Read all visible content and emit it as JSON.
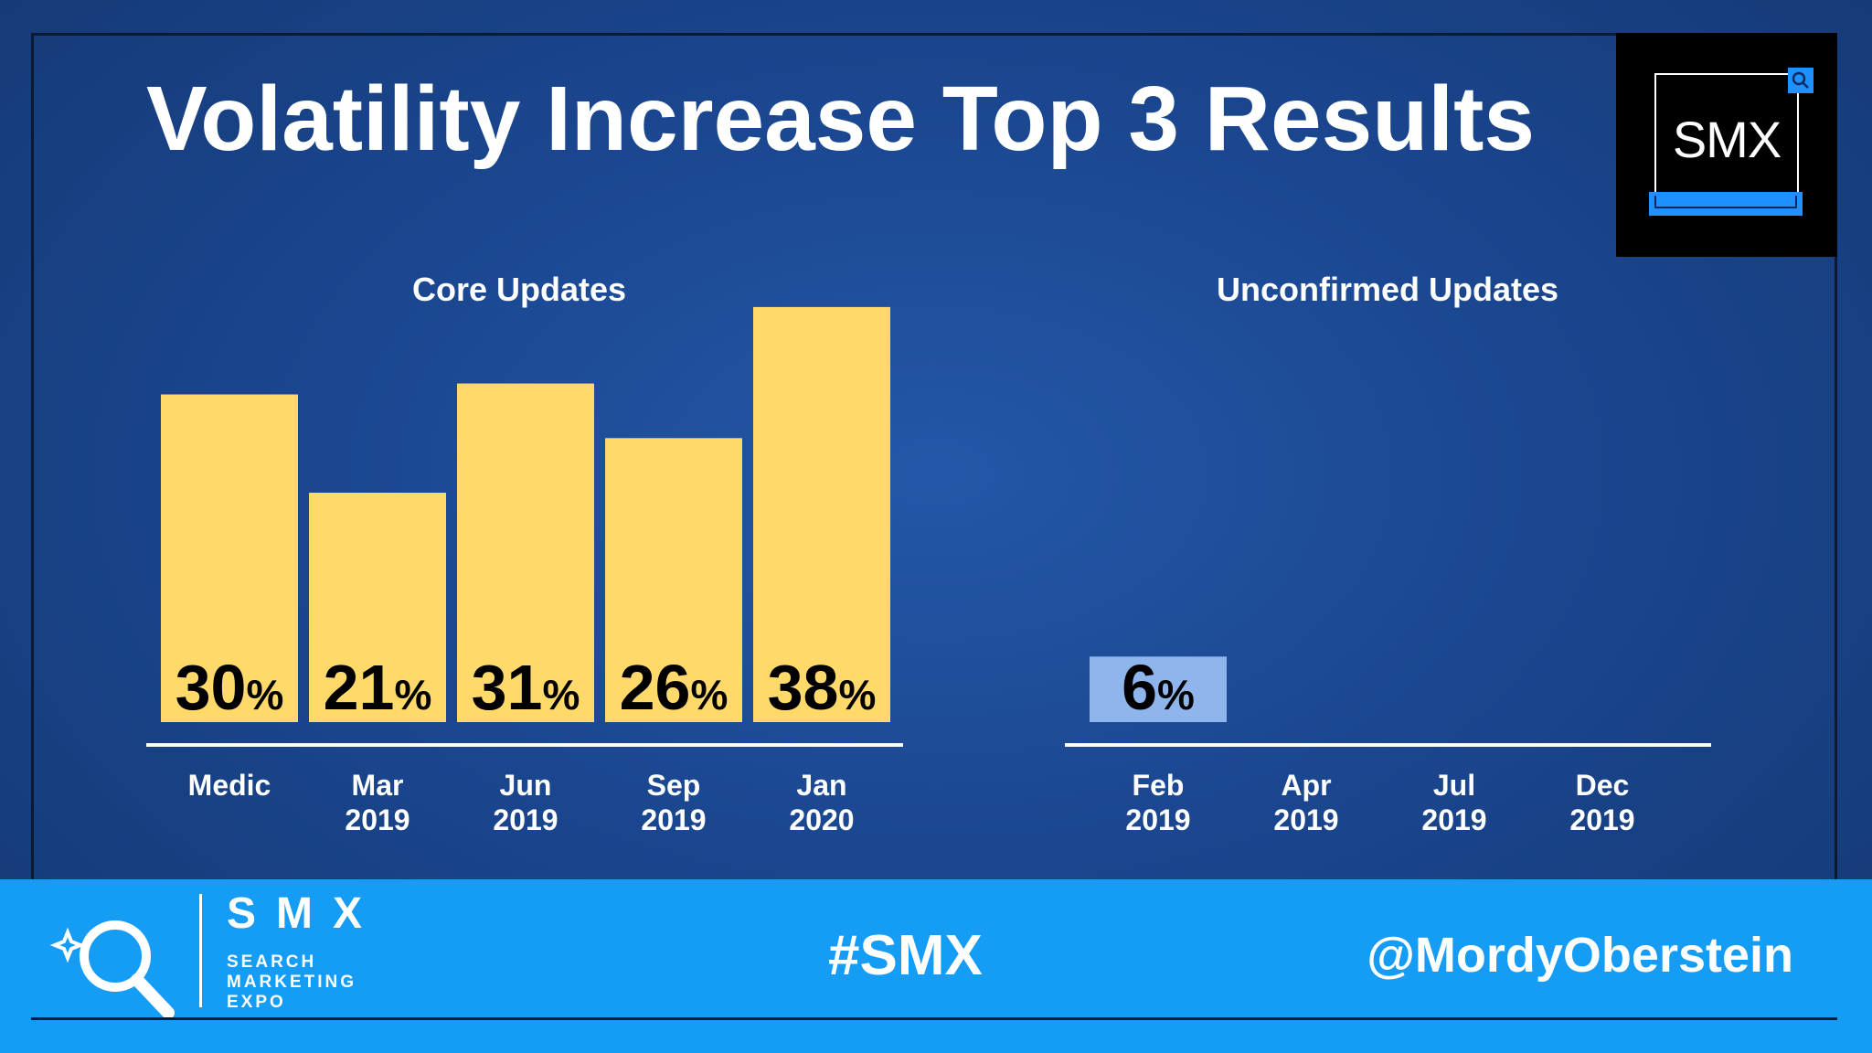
{
  "slide": {
    "title": "Volatility Increase Top 3 Results"
  },
  "logo": {
    "text": "SMX"
  },
  "footer": {
    "brand": "SMX",
    "brand_sub": [
      "SEARCH",
      "MARKETING",
      "EXPO"
    ],
    "hashtag": "#SMX",
    "handle": "@MordyOberstein"
  },
  "colors": {
    "core_bar": "#ffd96a",
    "unconfirmed_bar": "#8fb6ec",
    "footer": "#159cf5",
    "background": "#1b4791"
  },
  "chart_data": [
    {
      "type": "bar",
      "title": "Core Updates",
      "categories": [
        [
          "Medic"
        ],
        [
          "Mar",
          "2019"
        ],
        [
          "Jun",
          "2019"
        ],
        [
          "Sep",
          "2019"
        ],
        [
          "Jan",
          "2020"
        ]
      ],
      "values": [
        30,
        21,
        31,
        26,
        38
      ],
      "value_labels": [
        "30",
        "21",
        "31",
        "26",
        "38"
      ],
      "unit": "%",
      "ylim": [
        0,
        40
      ],
      "grid": false
    },
    {
      "type": "bar",
      "title": "Unconfirmed Updates",
      "categories": [
        [
          "Feb",
          "2019"
        ],
        [
          "Apr",
          "2019"
        ],
        [
          "Jul",
          "2019"
        ],
        [
          "Dec",
          "2019"
        ]
      ],
      "values": [
        6,
        null,
        null,
        null
      ],
      "value_labels": [
        "6",
        "",
        "",
        ""
      ],
      "unit": "%",
      "ylim": [
        0,
        40
      ],
      "grid": false
    }
  ]
}
